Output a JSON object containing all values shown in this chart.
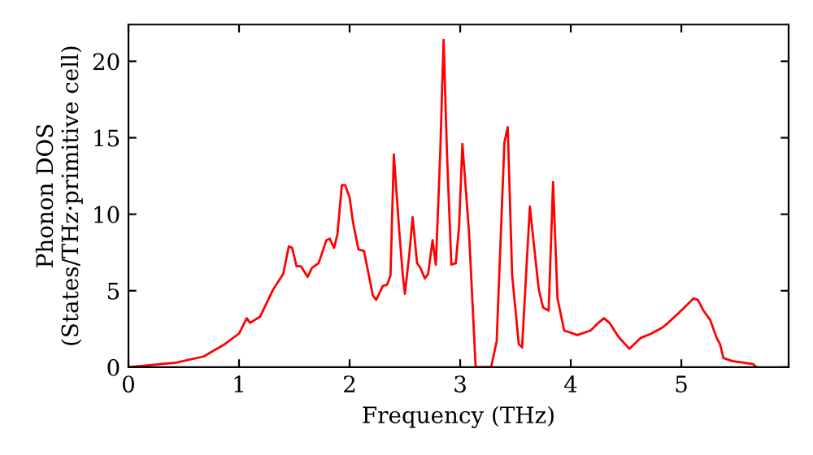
{
  "chart_data": {
    "type": "line",
    "xlabel": "Frequency (THz)",
    "ylabel": "Phonon DOS\n(States/THz·primitive cell)",
    "xlim": [
      0,
      5.97
    ],
    "ylim": [
      0,
      22.4
    ],
    "xticks": [
      0,
      1,
      2,
      3,
      4,
      5
    ],
    "yticks": [
      0,
      5,
      10,
      15,
      20
    ],
    "grid": false,
    "legend": false,
    "series": [
      {
        "color": "#ff0000",
        "x": [
          0,
          0.43,
          0.68,
          0.87,
          1.0,
          1.07,
          1.1,
          1.19,
          1.31,
          1.4,
          1.45,
          1.48,
          1.52,
          1.56,
          1.62,
          1.66,
          1.72,
          1.79,
          1.82,
          1.86,
          1.89,
          1.93,
          1.96,
          2.0,
          2.03,
          2.08,
          2.13,
          2.21,
          2.24,
          2.3,
          2.34,
          2.37,
          2.4,
          2.45,
          2.48,
          2.5,
          2.54,
          2.57,
          2.61,
          2.64,
          2.68,
          2.71,
          2.75,
          2.78,
          2.82,
          2.85,
          2.88,
          2.92,
          2.96,
          2.99,
          3.02,
          3.08,
          3.14,
          3.28,
          3.33,
          3.4,
          3.43,
          3.47,
          3.53,
          3.56,
          3.63,
          3.71,
          3.75,
          3.8,
          3.84,
          3.88,
          3.94,
          4.06,
          4.18,
          4.25,
          4.3,
          4.35,
          4.43,
          4.53,
          4.63,
          4.73,
          4.83,
          4.88,
          4.97,
          5.07,
          5.11,
          5.15,
          5.2,
          5.26,
          5.32,
          5.35,
          5.38,
          5.46,
          5.65,
          5.68
        ],
        "values": [
          0,
          0.3,
          0.7,
          1.5,
          2.2,
          3.2,
          2.9,
          3.3,
          5.1,
          6.1,
          7.9,
          7.8,
          6.6,
          6.6,
          5.9,
          6.5,
          6.8,
          8.3,
          8.4,
          7.8,
          8.7,
          11.9,
          11.9,
          11.1,
          9.5,
          7.7,
          7.6,
          4.7,
          4.4,
          5.3,
          5.4,
          6.0,
          13.9,
          8.8,
          6.1,
          4.8,
          7.4,
          9.8,
          6.8,
          6.5,
          5.8,
          6.1,
          8.3,
          6.7,
          14.1,
          21.4,
          14.1,
          6.7,
          6.8,
          9.2,
          14.6,
          8.8,
          0,
          0,
          1.7,
          14.7,
          15.7,
          6.0,
          1.5,
          1.3,
          10.5,
          5.1,
          3.9,
          3.7,
          12.1,
          4.5,
          2.4,
          2.1,
          2.4,
          2.9,
          3.2,
          2.9,
          2.0,
          1.2,
          1.9,
          2.2,
          2.6,
          2.9,
          3.5,
          4.2,
          4.5,
          4.4,
          3.7,
          3.1,
          1.9,
          1.5,
          0.6,
          0.4,
          0.2,
          0
        ]
      }
    ]
  }
}
